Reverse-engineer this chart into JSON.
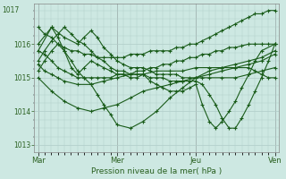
{
  "title": "Pression niveau de la mer( hPa )",
  "bg_color": "#cde8e2",
  "line_color": "#1a5c1a",
  "grid_color": "#b0ccc8",
  "tick_color": "#2a6020",
  "ylim": [
    1012.8,
    1017.2
  ],
  "yticks": [
    1013,
    1014,
    1015,
    1016
  ],
  "ytick_top": 1017,
  "day_labels": [
    "Mar",
    "Mer",
    "Jeu",
    "Ven"
  ],
  "day_positions": [
    0.0,
    1.0,
    2.0,
    3.0
  ],
  "series": [
    {
      "xs": [
        0.0,
        0.08,
        0.17,
        0.25,
        0.33,
        0.42,
        0.5,
        0.58,
        0.67,
        0.75,
        0.83,
        0.92,
        1.0,
        1.08,
        1.17,
        1.25,
        1.33,
        1.42,
        1.5,
        1.58,
        1.67,
        1.75,
        1.83,
        1.92,
        2.0,
        2.08,
        2.17,
        2.25,
        2.33,
        2.42,
        2.5,
        2.58,
        2.67,
        2.75,
        2.83,
        2.92,
        3.0
      ],
      "ys": [
        1016.5,
        1016.3,
        1016.2,
        1016.0,
        1015.9,
        1015.8,
        1015.8,
        1015.7,
        1015.7,
        1015.6,
        1015.6,
        1015.6,
        1015.6,
        1015.6,
        1015.7,
        1015.7,
        1015.7,
        1015.8,
        1015.8,
        1015.8,
        1015.8,
        1015.9,
        1015.9,
        1016.0,
        1016.0,
        1016.1,
        1016.2,
        1016.3,
        1016.4,
        1016.5,
        1016.6,
        1016.7,
        1016.8,
        1016.9,
        1016.9,
        1017.0,
        1017.0
      ]
    },
    {
      "xs": [
        0.0,
        0.08,
        0.17,
        0.25,
        0.33,
        0.42,
        0.5,
        0.58,
        0.67,
        0.75,
        0.83,
        0.92,
        1.0,
        1.08,
        1.17,
        1.25,
        1.33,
        1.42,
        1.5,
        1.58,
        1.67,
        1.75,
        1.83,
        1.92,
        2.0,
        2.08,
        2.17,
        2.25,
        2.33,
        2.42,
        2.5,
        2.58,
        2.67,
        2.75,
        2.83,
        2.92,
        3.0
      ],
      "ys": [
        1015.8,
        1015.7,
        1015.5,
        1015.3,
        1015.2,
        1015.1,
        1015.0,
        1015.0,
        1015.0,
        1015.0,
        1015.0,
        1015.0,
        1015.1,
        1015.1,
        1015.1,
        1015.2,
        1015.2,
        1015.3,
        1015.3,
        1015.4,
        1015.4,
        1015.5,
        1015.5,
        1015.6,
        1015.6,
        1015.7,
        1015.7,
        1015.8,
        1015.8,
        1015.9,
        1015.9,
        1015.95,
        1016.0,
        1016.0,
        1016.0,
        1016.0,
        1016.0
      ]
    },
    {
      "xs": [
        0.0,
        0.08,
        0.17,
        0.25,
        0.33,
        0.5,
        0.67,
        0.83,
        1.0,
        1.17,
        1.33,
        1.5,
        1.67,
        1.83,
        2.0,
        2.17,
        2.33,
        2.5,
        2.67,
        2.83,
        3.0
      ],
      "ys": [
        1015.4,
        1015.2,
        1015.1,
        1015.0,
        1014.9,
        1014.8,
        1014.8,
        1014.9,
        1015.0,
        1015.1,
        1015.1,
        1015.2,
        1015.2,
        1015.2,
        1015.3,
        1015.3,
        1015.3,
        1015.4,
        1015.5,
        1015.6,
        1015.8
      ]
    },
    {
      "xs": [
        0.0,
        0.17,
        0.33,
        0.5,
        0.67,
        0.83,
        1.0,
        1.17,
        1.33,
        1.5,
        1.67,
        1.83,
        2.0,
        2.17,
        2.33,
        2.5,
        2.67,
        2.83,
        3.0
      ],
      "ys": [
        1015.0,
        1014.6,
        1014.3,
        1014.1,
        1014.0,
        1014.1,
        1014.2,
        1014.4,
        1014.6,
        1014.7,
        1014.8,
        1014.9,
        1015.0,
        1015.1,
        1015.2,
        1015.3,
        1015.4,
        1015.5,
        1015.7
      ]
    },
    {
      "xs": [
        0.0,
        0.17,
        0.33,
        0.5,
        0.58,
        0.67,
        0.75,
        0.83,
        0.92,
        1.0,
        1.08,
        1.17,
        1.25,
        1.33,
        1.42,
        1.5,
        1.58,
        1.67,
        1.75,
        1.83,
        1.92,
        2.0,
        2.08,
        2.17,
        2.33,
        2.5,
        2.67,
        2.83,
        3.0
      ],
      "ys": [
        1016.0,
        1016.5,
        1016.2,
        1016.0,
        1016.2,
        1016.4,
        1016.2,
        1015.9,
        1015.7,
        1015.5,
        1015.4,
        1015.3,
        1015.3,
        1015.3,
        1015.2,
        1015.1,
        1015.1,
        1015.1,
        1015.1,
        1015.0,
        1015.0,
        1015.0,
        1015.0,
        1015.0,
        1015.0,
        1015.0,
        1015.1,
        1015.2,
        1015.3
      ]
    },
    {
      "xs": [
        0.0,
        0.17,
        0.25,
        0.33,
        0.42,
        0.5,
        0.58,
        0.67,
        0.75,
        0.83,
        0.92,
        1.0,
        1.08,
        1.17,
        1.25,
        1.33,
        1.42,
        1.5,
        1.58,
        1.67,
        1.75,
        1.83,
        1.92,
        2.0,
        2.08,
        2.17,
        2.25,
        2.33,
        2.42,
        2.5,
        2.58,
        2.67,
        2.75,
        2.83,
        3.0
      ],
      "ys": [
        1015.8,
        1016.5,
        1016.2,
        1015.8,
        1015.3,
        1015.1,
        1015.3,
        1015.5,
        1015.4,
        1015.3,
        1015.2,
        1015.1,
        1015.1,
        1015.0,
        1015.0,
        1015.1,
        1014.9,
        1014.8,
        1014.7,
        1014.6,
        1014.6,
        1014.6,
        1014.7,
        1014.8,
        1014.2,
        1013.7,
        1013.5,
        1013.7,
        1014.0,
        1014.3,
        1014.7,
        1015.1,
        1015.5,
        1015.8,
        1016.0
      ]
    },
    {
      "xs": [
        0.0,
        0.08,
        0.17,
        0.25,
        0.33,
        0.42,
        0.5,
        0.58,
        0.67,
        0.75,
        0.83,
        0.92,
        1.0,
        1.08,
        1.17,
        1.25,
        1.33,
        1.42,
        1.5,
        1.58,
        1.67,
        1.75,
        1.83,
        1.92,
        2.0,
        2.08,
        2.17,
        2.25,
        2.33,
        2.42,
        2.5,
        2.58,
        2.67,
        2.75,
        2.83,
        2.92,
        3.0
      ],
      "ys": [
        1015.5,
        1015.8,
        1016.1,
        1016.3,
        1016.5,
        1016.3,
        1016.1,
        1016.0,
        1015.8,
        1015.6,
        1015.5,
        1015.3,
        1015.2,
        1015.2,
        1015.1,
        1015.1,
        1015.1,
        1015.0,
        1015.0,
        1015.0,
        1014.9,
        1014.9,
        1014.9,
        1014.9,
        1014.9,
        1014.8,
        1014.5,
        1014.2,
        1013.8,
        1013.5,
        1013.5,
        1013.8,
        1014.2,
        1014.6,
        1015.0,
        1015.5,
        1016.0
      ]
    },
    {
      "xs": [
        0.0,
        0.08,
        0.17,
        0.25,
        0.33,
        0.42,
        0.5,
        0.58,
        0.67,
        0.75,
        0.83,
        0.92,
        1.0,
        1.17,
        1.33,
        1.5,
        1.67,
        1.83,
        2.0,
        2.17,
        2.33,
        2.5,
        2.67,
        2.75,
        2.83,
        2.92,
        3.0
      ],
      "ys": [
        1015.2,
        1015.5,
        1015.8,
        1016.0,
        1015.8,
        1015.5,
        1015.2,
        1015.0,
        1014.8,
        1014.5,
        1014.2,
        1013.9,
        1013.6,
        1013.5,
        1013.7,
        1014.0,
        1014.4,
        1014.7,
        1015.0,
        1015.2,
        1015.3,
        1015.3,
        1015.3,
        1015.2,
        1015.1,
        1015.0,
        1015.0
      ]
    }
  ]
}
